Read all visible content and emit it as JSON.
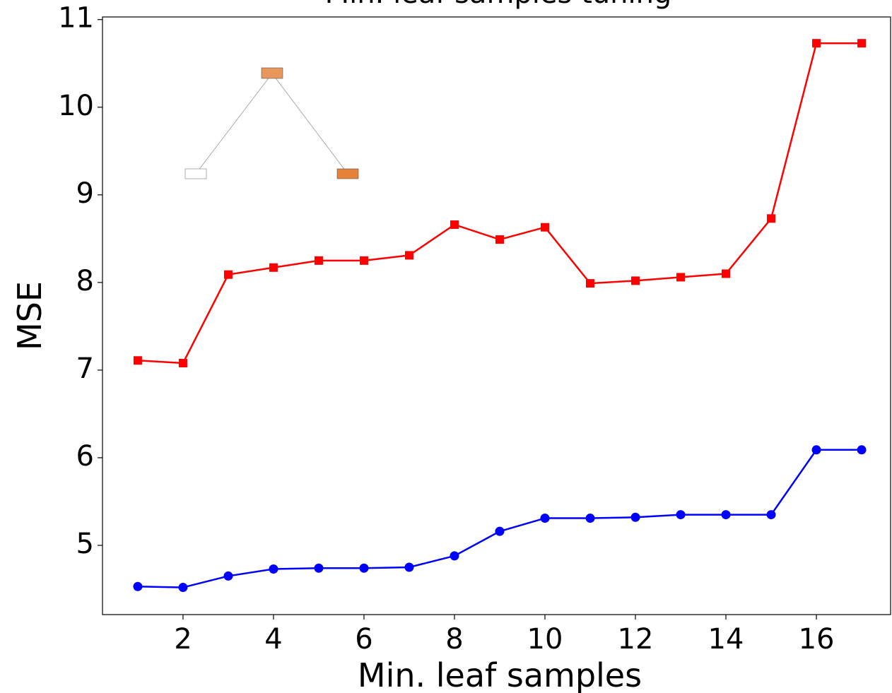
{
  "chart_data": {
    "type": "line",
    "title": "Min. leaf samples tuning",
    "x_label": "Min. leaf samples",
    "y_label": "MSE",
    "x": [
      1,
      2,
      3,
      4,
      5,
      6,
      7,
      8,
      9,
      10,
      11,
      12,
      13,
      14,
      15,
      16,
      17
    ],
    "series": [
      {
        "color": "#ff0000",
        "marker": "square",
        "values": [
          7.11,
          7.08,
          8.09,
          8.17,
          8.25,
          8.25,
          8.31,
          8.66,
          8.49,
          8.63,
          7.99,
          8.02,
          8.06,
          8.1,
          8.73,
          10.73,
          10.73
        ]
      },
      {
        "color": "#0000ff",
        "marker": "circle",
        "values": [
          4.53,
          4.52,
          4.65,
          4.73,
          4.74,
          4.74,
          4.75,
          4.88,
          5.16,
          5.31,
          5.31,
          5.32,
          5.35,
          5.35,
          5.35,
          6.09,
          6.09
        ]
      }
    ],
    "xlim": [
      0.22,
      17.64
    ],
    "ylim": [
      4.21,
      11.03
    ],
    "xticks": [
      2,
      4,
      6,
      8,
      10,
      12,
      14,
      16
    ],
    "yticks": [
      5,
      6,
      7,
      8,
      9,
      10,
      11
    ],
    "grid": false
  }
}
